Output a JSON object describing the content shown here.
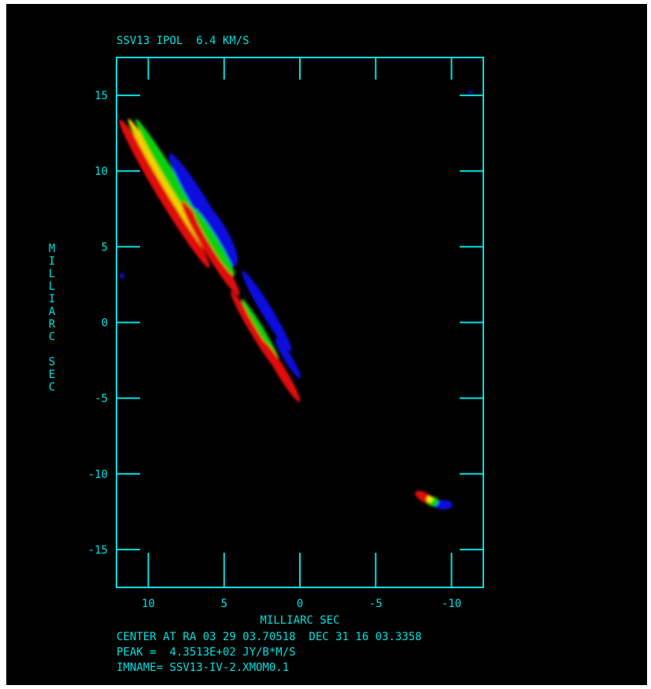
{
  "chart_data": {
    "type": "image",
    "title": "SSV13 IPOL  6.4 KM/S",
    "xlabel": "MILLIARC SEC",
    "ylabel": "MILLIARC SEC",
    "xlim": [
      12.1,
      -12.1
    ],
    "ylim": [
      -17.5,
      17.5
    ],
    "xticks": [
      10,
      5,
      0,
      -5,
      -10
    ],
    "yticks": [
      15,
      10,
      5,
      0,
      -5,
      -10,
      -15
    ],
    "color": "#00e0e0",
    "annotations": [
      "CENTER AT RA 03 29 03.70518  DEC 31 16 03.3358",
      "PEAK =  4.3513E+02 JY/B*M/S",
      "IMNAME= SSV13-IV-2.XMOM0.1"
    ]
  }
}
